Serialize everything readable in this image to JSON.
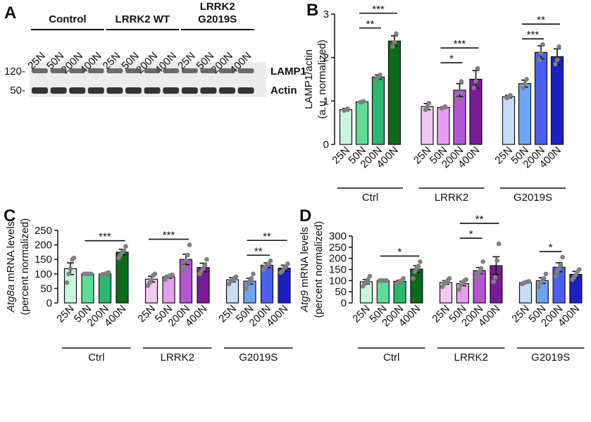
{
  "chart_data": [
    {
      "type": "blot",
      "panel": "A",
      "groups": [
        {
          "lines": [
            "Control"
          ]
        },
        {
          "lines": [
            "LRRK2 WT"
          ]
        },
        {
          "lines": [
            "LRRK2",
            "G2019S"
          ]
        }
      ],
      "lanes": [
        "25N",
        "50N",
        "200N",
        "400N",
        "25N",
        "50N",
        "200N",
        "400N",
        "25N",
        "50N",
        "200N",
        "400N"
      ],
      "rows": [
        {
          "name": "LAMP1",
          "marker": "120-"
        },
        {
          "name": "Actin",
          "marker": "50-"
        }
      ]
    },
    {
      "type": "bar",
      "panel": "B",
      "ylabel": [
        [
          {
            "text": "LAMP1/actin"
          }
        ],
        [
          {
            "text": "(a.u. normalized)"
          }
        ]
      ],
      "ylim": [
        0,
        3
      ],
      "yticks": [
        0,
        1,
        2,
        3
      ],
      "groups": [
        {
          "name": "Ctrl",
          "categories": [
            "25N",
            "50N",
            "200N",
            "400N"
          ],
          "colors": [
            "#c8f5dc",
            "#5fdc9a",
            "#2ab673",
            "#0a6b1a"
          ],
          "values": [
            0.8,
            0.98,
            1.55,
            2.38
          ],
          "errors": [
            0.03,
            0.01,
            0.05,
            0.12
          ],
          "points": [
            [
              0.78,
              0.8,
              0.82
            ],
            [
              0.97,
              0.98,
              0.99
            ],
            [
              1.5,
              1.55,
              1.6
            ],
            [
              2.25,
              2.35,
              2.55
            ]
          ],
          "brackets": [
            {
              "from": 1,
              "to": 2,
              "label": "**"
            },
            {
              "from": 1,
              "to": 3,
              "label": "***"
            }
          ]
        },
        {
          "name": "LRRK2",
          "categories": [
            "25N",
            "50N",
            "200N",
            "400N"
          ],
          "colors": [
            "#f0c8f0",
            "#e6a0f0",
            "#b455d2",
            "#7a1a9a"
          ],
          "values": [
            0.87,
            0.85,
            1.25,
            1.5
          ],
          "errors": [
            0.07,
            0.02,
            0.15,
            0.2
          ],
          "points": [
            [
              0.8,
              0.86,
              0.95
            ],
            [
              0.83,
              0.85,
              0.87
            ],
            [
              1.05,
              1.2,
              1.45
            ],
            [
              1.3,
              1.45,
              1.75
            ]
          ],
          "brackets": [
            {
              "from": 1,
              "to": 2,
              "label": "*"
            },
            {
              "from": 1,
              "to": 3,
              "label": "***"
            }
          ]
        },
        {
          "name": "G2019S",
          "categories": [
            "25N",
            "50N",
            "200N",
            "400N"
          ],
          "colors": [
            "#c8dcf5",
            "#6ea5f0",
            "#4a5ff0",
            "#1e1ec8"
          ],
          "values": [
            1.1,
            1.4,
            2.12,
            2.02
          ],
          "errors": [
            0.03,
            0.08,
            0.15,
            0.18
          ],
          "points": [
            [
              1.07,
              1.1,
              1.13
            ],
            [
              1.3,
              1.4,
              1.5
            ],
            [
              1.95,
              2.1,
              2.3
            ],
            [
              1.85,
              1.95,
              2.25
            ]
          ],
          "brackets": [
            {
              "from": 1,
              "to": 2,
              "label": "***"
            },
            {
              "from": 1,
              "to": 3,
              "label": "**"
            }
          ]
        }
      ]
    },
    {
      "type": "bar",
      "panel": "C",
      "ylabel": [
        [
          {
            "text": "Atg8a",
            "italic": true
          },
          {
            "text": "mRNA levels"
          }
        ],
        [
          {
            "text": "(percent normalized)"
          }
        ]
      ],
      "ylim": [
        0,
        250
      ],
      "yticks": [
        0,
        50,
        100,
        150,
        200,
        250
      ],
      "groups": [
        {
          "name": "Ctrl",
          "categories": [
            "25N",
            "50N",
            "200N",
            "400N"
          ],
          "colors": [
            "#c8f5dc",
            "#5fdc9a",
            "#2ab673",
            "#0a6b1a"
          ],
          "values": [
            118,
            100,
            100,
            175
          ],
          "errors": [
            20,
            0,
            4,
            10
          ],
          "points": [
            [
              70,
              100,
              118,
              150,
              155
            ],
            [
              100,
              100,
              100,
              100,
              100
            ],
            [
              95,
              98,
              100,
              102,
              105
            ],
            [
              155,
              165,
              175,
              180,
              195
            ]
          ],
          "brackets": [
            {
              "from": 1,
              "to": 3,
              "label": "***"
            }
          ]
        },
        {
          "name": "LRRK2",
          "categories": [
            "25N",
            "50N",
            "200N",
            "400N"
          ],
          "colors": [
            "#f0c8f0",
            "#e6a0f0",
            "#b455d2",
            "#7a1a9a"
          ],
          "values": [
            82,
            90,
            150,
            122
          ],
          "errors": [
            10,
            5,
            18,
            15
          ],
          "points": [
            [
              60,
              70,
              80,
              95,
              100
            ],
            [
              80,
              88,
              92,
              95,
              97
            ],
            [
              110,
              125,
              145,
              165,
              200
            ],
            [
              100,
              110,
              120,
              130,
              150
            ]
          ],
          "brackets": [
            {
              "from": 0,
              "to": 2,
              "label": "***"
            }
          ]
        },
        {
          "name": "G2019S",
          "categories": [
            "25N",
            "50N",
            "200N",
            "400N"
          ],
          "colors": [
            "#c8dcf5",
            "#6ea5f0",
            "#4a5ff0",
            "#1e1ec8"
          ],
          "values": [
            80,
            75,
            130,
            120
          ],
          "errors": [
            7,
            10,
            8,
            10
          ],
          "points": [
            [
              65,
              75,
              80,
              85,
              90
            ],
            [
              50,
              65,
              75,
              85,
              100
            ],
            [
              115,
              125,
              130,
              135,
              145
            ],
            [
              105,
              110,
              120,
              125,
              135
            ]
          ],
          "brackets": [
            {
              "from": 1,
              "to": 2,
              "label": "**"
            },
            {
              "from": 1,
              "to": 3,
              "label": "**"
            }
          ]
        }
      ]
    },
    {
      "type": "bar",
      "panel": "D",
      "ylabel": [
        [
          {
            "text": "Atg9",
            "italic": true
          },
          {
            "text": "mRNA levels"
          }
        ],
        [
          {
            "text": "(percent normalized)"
          }
        ]
      ],
      "ylim": [
        0,
        300
      ],
      "yticks": [
        0,
        50,
        100,
        150,
        200,
        250,
        300
      ],
      "groups": [
        {
          "name": "Ctrl",
          "categories": [
            "25N",
            "50N",
            "200N",
            "400N"
          ],
          "colors": [
            "#c8f5dc",
            "#5fdc9a",
            "#2ab673",
            "#0a6b1a"
          ],
          "values": [
            95,
            100,
            97,
            152
          ],
          "errors": [
            10,
            0,
            5,
            15
          ],
          "points": [
            [
              75,
              85,
              95,
              105,
              120
            ],
            [
              100,
              100,
              100,
              100,
              100
            ],
            [
              85,
              92,
              97,
              100,
              110
            ],
            [
              110,
              140,
              155,
              165,
              185
            ]
          ],
          "brackets": [
            {
              "from": 1,
              "to": 3,
              "label": "*"
            }
          ]
        },
        {
          "name": "LRRK2",
          "categories": [
            "25N",
            "50N",
            "200N",
            "400N"
          ],
          "colors": [
            "#f0c8f0",
            "#e6a0f0",
            "#b455d2",
            "#7a1a9a"
          ],
          "values": [
            92,
            87,
            145,
            167
          ],
          "errors": [
            8,
            10,
            14,
            40
          ],
          "points": [
            [
              72,
              85,
              92,
              100,
              110
            ],
            [
              60,
              80,
              90,
              100,
              105
            ],
            [
              115,
              130,
              140,
              155,
              185
            ],
            [
              95,
              115,
              190,
              265
            ]
          ],
          "brackets": [
            {
              "from": 1,
              "to": 2,
              "label": "*"
            },
            {
              "from": 1,
              "to": 3,
              "label": "**"
            }
          ]
        },
        {
          "name": "G2019S",
          "categories": [
            "25N",
            "50N",
            "200N",
            "400N"
          ],
          "colors": [
            "#c8dcf5",
            "#6ea5f0",
            "#4a5ff0",
            "#1e1ec8"
          ],
          "values": [
            92,
            100,
            160,
            128
          ],
          "errors": [
            4,
            13,
            20,
            13
          ],
          "points": [
            [
              85,
              90,
              92,
              95,
              97
            ],
            [
              72,
              90,
              100,
              110,
              130
            ],
            [
              120,
              140,
              155,
              170,
              205
            ],
            [
              105,
              115,
              125,
              140,
              150
            ]
          ],
          "brackets": [
            {
              "from": 1,
              "to": 2,
              "label": "*"
            }
          ]
        }
      ]
    }
  ]
}
